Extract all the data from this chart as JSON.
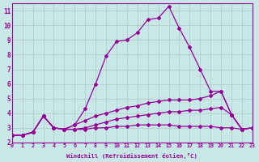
{
  "xlabel": "Windchill (Refroidissement éolien,°C)",
  "ylabel": "",
  "bg_color": "#c8e8e8",
  "line_color": "#990099",
  "grid_color": "#b0c8c8",
  "xlim": [
    0,
    23
  ],
  "ylim": [
    2,
    11.5
  ],
  "xticks": [
    0,
    1,
    2,
    3,
    4,
    5,
    6,
    7,
    8,
    9,
    10,
    11,
    12,
    13,
    14,
    15,
    16,
    17,
    18,
    19,
    20,
    21,
    22,
    23
  ],
  "yticks": [
    2,
    3,
    4,
    5,
    6,
    7,
    8,
    9,
    10,
    11
  ],
  "lines": [
    {
      "x": [
        0,
        1,
        2,
        3,
        4,
        5,
        6,
        7,
        8,
        9,
        10,
        11,
        12,
        13,
        14,
        15,
        16,
        17,
        18,
        19,
        20,
        21,
        22,
        23
      ],
      "y": [
        2.5,
        2.5,
        2.7,
        3.8,
        3.0,
        2.9,
        2.9,
        2.9,
        3.0,
        3.0,
        3.1,
        3.1,
        3.2,
        3.2,
        3.2,
        3.2,
        3.1,
        3.1,
        3.1,
        3.1,
        3.0,
        3.0,
        2.9,
        3.0
      ]
    },
    {
      "x": [
        0,
        1,
        2,
        3,
        4,
        5,
        6,
        7,
        8,
        9,
        10,
        11,
        12,
        13,
        14,
        15,
        16,
        17,
        18,
        19,
        20,
        21,
        22,
        23
      ],
      "y": [
        2.5,
        2.5,
        2.7,
        3.8,
        3.0,
        2.9,
        2.9,
        3.0,
        3.2,
        3.4,
        3.6,
        3.7,
        3.8,
        3.9,
        4.0,
        4.1,
        4.1,
        4.2,
        4.2,
        4.3,
        4.4,
        3.9,
        2.9,
        3.0
      ]
    },
    {
      "x": [
        0,
        1,
        2,
        3,
        4,
        5,
        6,
        7,
        8,
        9,
        10,
        11,
        12,
        13,
        14,
        15,
        16,
        17,
        18,
        19,
        20,
        21,
        22,
        23
      ],
      "y": [
        2.5,
        2.5,
        2.7,
        3.8,
        3.0,
        2.9,
        3.2,
        3.5,
        3.8,
        4.0,
        4.2,
        4.4,
        4.5,
        4.7,
        4.8,
        4.9,
        4.9,
        4.9,
        5.0,
        5.2,
        5.5,
        3.9,
        2.9,
        3.0
      ]
    },
    {
      "x": [
        0,
        1,
        2,
        3,
        4,
        5,
        6,
        7,
        8,
        9,
        10,
        11,
        12,
        13,
        14,
        15,
        16,
        17,
        18,
        19,
        20,
        21,
        22,
        23
      ],
      "y": [
        2.5,
        2.5,
        2.7,
        3.8,
        3.0,
        2.9,
        3.2,
        4.3,
        6.0,
        7.9,
        8.9,
        9.0,
        9.5,
        10.4,
        10.5,
        11.3,
        9.8,
        8.5,
        7.0,
        5.5,
        5.5,
        3.9,
        2.9,
        3.0
      ]
    }
  ],
  "marker": "D",
  "marker_size": 2.0,
  "linewidth": 0.9
}
